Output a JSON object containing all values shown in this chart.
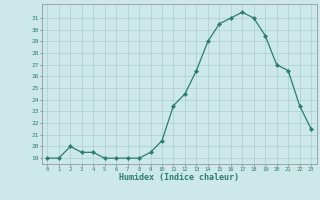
{
  "x": [
    0,
    1,
    2,
    3,
    4,
    5,
    6,
    7,
    8,
    9,
    10,
    11,
    12,
    13,
    14,
    15,
    16,
    17,
    18,
    19,
    20,
    21,
    22,
    23
  ],
  "y": [
    19,
    19,
    20,
    19.5,
    19.5,
    19,
    19,
    19,
    19,
    19.5,
    20.5,
    23.5,
    24.5,
    26.5,
    29,
    30.5,
    31,
    31.5,
    31,
    29.5,
    27,
    26.5,
    23.5,
    21.5
  ],
  "xlabel": "Humidex (Indice chaleur)",
  "ylim": [
    18.5,
    32.2
  ],
  "xlim": [
    -0.5,
    23.5
  ],
  "yticks": [
    19,
    20,
    21,
    22,
    23,
    24,
    25,
    26,
    27,
    28,
    29,
    30,
    31
  ],
  "xticks": [
    0,
    1,
    2,
    3,
    4,
    5,
    6,
    7,
    8,
    9,
    10,
    11,
    12,
    13,
    14,
    15,
    16,
    17,
    18,
    19,
    20,
    21,
    22,
    23
  ],
  "line_color": "#2e7d6e",
  "marker_color": "#2e7d6e",
  "bg_color": "#cce8e8",
  "grid_color": "#aacfcf",
  "tick_label_color": "#2e7d6e",
  "xlabel_color": "#2e7d6e",
  "axis_color": "#999999"
}
